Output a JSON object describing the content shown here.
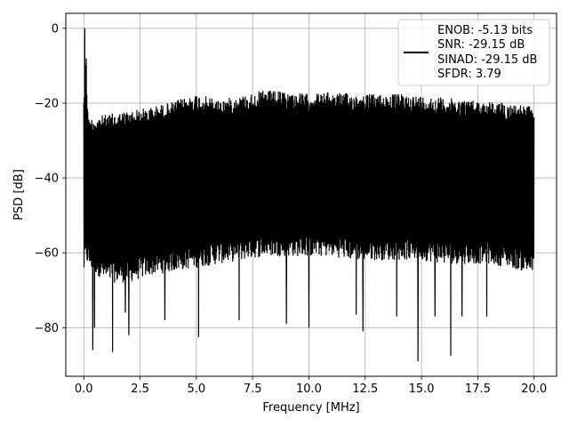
{
  "chart_data": {
    "type": "line",
    "xlabel": "Frequency [MHz]",
    "ylabel": "PSD [dB]",
    "xlim": [
      -0.8,
      21.0
    ],
    "ylim": [
      -93,
      4
    ],
    "xticks": [
      0.0,
      2.5,
      5.0,
      7.5,
      10.0,
      12.5,
      15.0,
      17.5,
      20.0
    ],
    "xtick_labels": [
      "0.0",
      "2.5",
      "5.0",
      "7.5",
      "10.0",
      "12.5",
      "15.0",
      "17.5",
      "20.0"
    ],
    "yticks": [
      0,
      -20,
      -40,
      -60,
      -80
    ],
    "ytick_labels": [
      "0",
      "−20",
      "−40",
      "−60",
      "−80"
    ],
    "grid": true,
    "legend_position": "top-right",
    "series": [
      {
        "color": "#000000",
        "x": [
          0,
          0.08,
          0.1,
          0.14,
          0.2,
          1,
          2,
          3,
          4,
          5,
          6,
          7,
          8,
          9,
          10,
          11,
          12,
          13,
          14,
          15,
          16,
          17,
          18,
          19,
          20
        ],
        "upper": [
          -17,
          -12,
          0,
          -17,
          -24,
          -23,
          -22,
          -21,
          -19.5,
          -17.5,
          -19,
          -18,
          -16.5,
          -17,
          -17.5,
          -17,
          -17.5,
          -17.5,
          -17.5,
          -18,
          -18.5,
          -19,
          -19.5,
          -20,
          -21
        ],
        "typical_lower": [
          -66,
          -64,
          -62,
          -63,
          -64,
          -68,
          -68,
          -66,
          -65,
          -64,
          -63,
          -62,
          -61,
          -61,
          -61,
          -61,
          -62,
          -62,
          -62,
          -62,
          -63,
          -63,
          -63,
          -64,
          -66
        ]
      }
    ],
    "dips": [
      {
        "x": 0.4,
        "y": -86
      },
      {
        "x": 0.48,
        "y": -80
      },
      {
        "x": 1.28,
        "y": -86.5
      },
      {
        "x": 1.85,
        "y": -76
      },
      {
        "x": 2.0,
        "y": -82
      },
      {
        "x": 3.6,
        "y": -78
      },
      {
        "x": 5.1,
        "y": -82.5
      },
      {
        "x": 6.9,
        "y": -78
      },
      {
        "x": 9.0,
        "y": -79
      },
      {
        "x": 10.0,
        "y": -80
      },
      {
        "x": 12.1,
        "y": -76.5
      },
      {
        "x": 12.4,
        "y": -81
      },
      {
        "x": 13.9,
        "y": -77
      },
      {
        "x": 14.85,
        "y": -89
      },
      {
        "x": 15.6,
        "y": -77
      },
      {
        "x": 16.3,
        "y": -87.5
      },
      {
        "x": 16.8,
        "y": -77
      },
      {
        "x": 17.9,
        "y": -77
      }
    ],
    "legend": {
      "lines": [
        "ENOB: -5.13 bits",
        "SNR: -29.15 dB",
        "SINAD: -29.15 dB",
        "SFDR: 3.79"
      ]
    }
  }
}
